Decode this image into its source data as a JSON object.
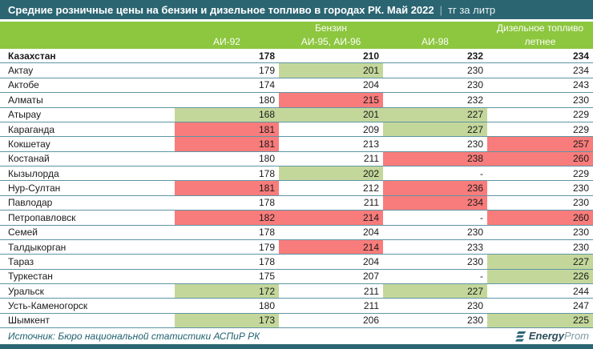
{
  "title": {
    "main": "Средние розничные цены на бензин и дизельное топливо в городах РК. Май 2022",
    "separator": "|",
    "unit": "тг за литр"
  },
  "header": {
    "group_benzin": "Бензин",
    "group_diesel": "Дизельное топливо",
    "col_ai92": "АИ-92",
    "col_ai9596": "АИ-95, АИ-96",
    "col_ai98": "АИ-98",
    "col_diesel_sub": "летнее"
  },
  "footer": {
    "source": "Источник: Бюро национальной статистики АСПиР РК",
    "logo_bold": "Energy",
    "logo_light": "Prom"
  },
  "colors": {
    "titlebar": "#2B6572",
    "header_green": "#8DC63F",
    "cell_green": "#C4D79B",
    "cell_red": "#F87C7B",
    "row_separator": "#5E95A4",
    "footer_text": "#1E5F6E"
  },
  "chart_data": {
    "type": "table",
    "title": "Средние розничные цены на бензин и дизельное топливо в городах РК. Май 2022",
    "unit": "тг за литр",
    "group_headers": [
      "Бензин",
      "Дизельное топливо"
    ],
    "columns": [
      "АИ-92",
      "АИ-95, АИ-96",
      "АИ-98",
      "Дизельное топливо летнее"
    ],
    "highlight_legend": {
      "green": "#C4D79B",
      "red": "#F87C7B"
    },
    "rows": [
      {
        "name": "Казахстан",
        "bold": true,
        "values": [
          178,
          210,
          232,
          234
        ],
        "highlights": [
          null,
          null,
          null,
          null
        ]
      },
      {
        "name": "Актау",
        "values": [
          179,
          201,
          230,
          234
        ],
        "highlights": [
          null,
          "green",
          null,
          null
        ]
      },
      {
        "name": "Актобе",
        "values": [
          174,
          204,
          230,
          243
        ],
        "highlights": [
          null,
          null,
          null,
          null
        ]
      },
      {
        "name": "Алматы",
        "values": [
          180,
          215,
          232,
          230
        ],
        "highlights": [
          null,
          "red",
          null,
          null
        ]
      },
      {
        "name": "Атырау",
        "values": [
          168,
          201,
          227,
          229
        ],
        "highlights": [
          "green",
          "green",
          "green",
          null
        ]
      },
      {
        "name": "Караганда",
        "values": [
          181,
          209,
          227,
          229
        ],
        "highlights": [
          "red",
          null,
          "green",
          null
        ]
      },
      {
        "name": "Кокшетау",
        "values": [
          181,
          213,
          230,
          257
        ],
        "highlights": [
          "red",
          null,
          null,
          "red"
        ]
      },
      {
        "name": "Костанай",
        "values": [
          180,
          211,
          238,
          260
        ],
        "highlights": [
          null,
          null,
          "red",
          "red"
        ]
      },
      {
        "name": "Кызылорда",
        "values": [
          178,
          202,
          "-",
          229
        ],
        "highlights": [
          null,
          "green",
          null,
          null
        ]
      },
      {
        "name": "Нур-Султан",
        "values": [
          181,
          212,
          236,
          230
        ],
        "highlights": [
          "red",
          null,
          "red",
          null
        ]
      },
      {
        "name": "Павлодар",
        "values": [
          178,
          211,
          234,
          230
        ],
        "highlights": [
          null,
          null,
          "red",
          null
        ]
      },
      {
        "name": "Петропавловск",
        "values": [
          182,
          214,
          "-",
          260
        ],
        "highlights": [
          "red",
          "red",
          null,
          "red"
        ]
      },
      {
        "name": "Семей",
        "values": [
          178,
          204,
          230,
          230
        ],
        "highlights": [
          null,
          null,
          null,
          null
        ]
      },
      {
        "name": "Талдыкорган",
        "values": [
          179,
          214,
          233,
          230
        ],
        "highlights": [
          null,
          "red",
          null,
          null
        ]
      },
      {
        "name": "Тараз",
        "values": [
          178,
          204,
          230,
          227
        ],
        "highlights": [
          null,
          null,
          null,
          "green"
        ]
      },
      {
        "name": "Туркестан",
        "values": [
          175,
          207,
          "-",
          226
        ],
        "highlights": [
          null,
          null,
          null,
          "green"
        ]
      },
      {
        "name": "Уральск",
        "values": [
          172,
          211,
          227,
          244
        ],
        "highlights": [
          "green",
          null,
          "green",
          null
        ]
      },
      {
        "name": "Усть-Каменогорск",
        "values": [
          180,
          211,
          230,
          247
        ],
        "highlights": [
          null,
          null,
          null,
          null
        ]
      },
      {
        "name": "Шымкент",
        "values": [
          173,
          206,
          230,
          225
        ],
        "highlights": [
          "green",
          null,
          null,
          "green"
        ]
      }
    ]
  }
}
